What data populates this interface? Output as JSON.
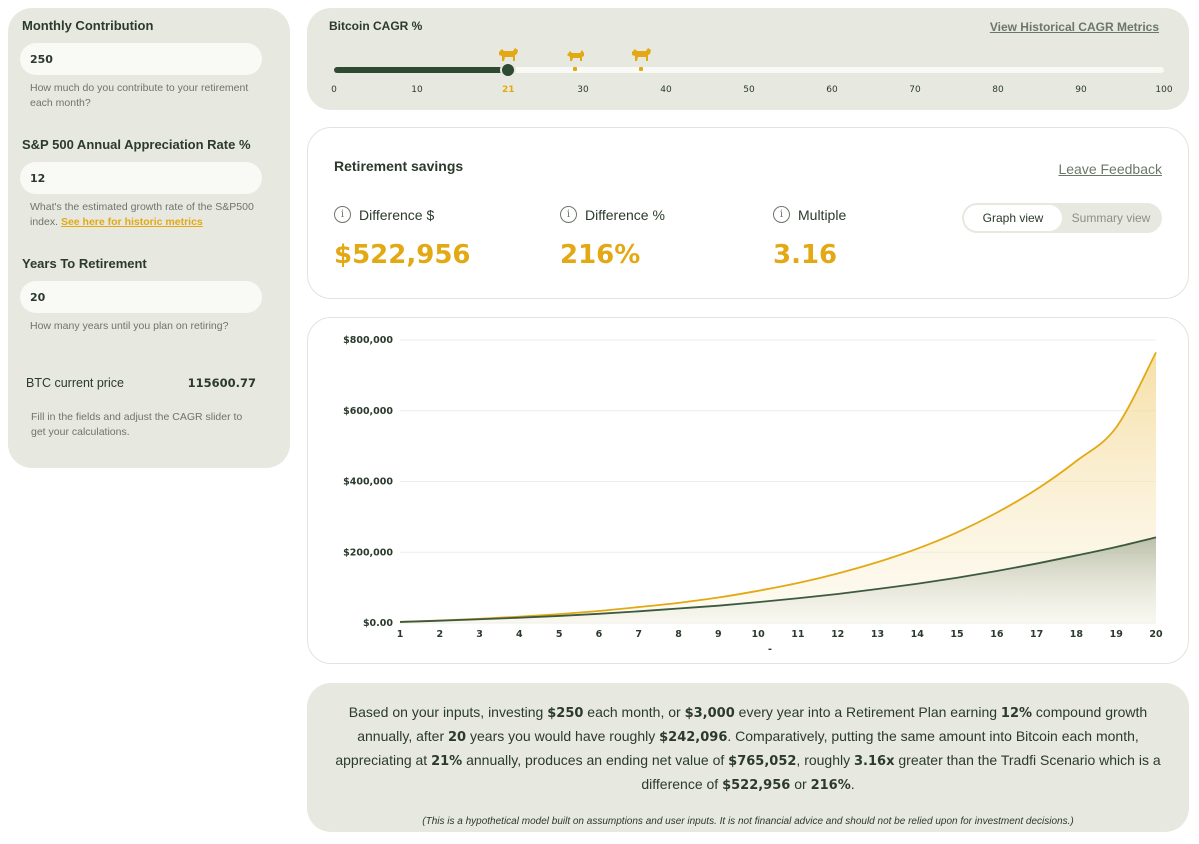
{
  "inputs": {
    "monthly_contribution": {
      "label": "Monthly Contribution",
      "value": "250",
      "help": "How much do you contribute to your retirement each month?"
    },
    "sp500_rate": {
      "label": "S&P 500 Annual Appreciation Rate %",
      "value": "12",
      "help": "What's the estimated growth rate of the S&P500 index.",
      "link": "See here for historic metrics"
    },
    "years": {
      "label": "Years To Retirement",
      "value": "20",
      "help": "How many years until you plan on retiring?"
    },
    "btc_price_label": "BTC current price",
    "btc_price_value": "115600.77",
    "instructions": "Fill in the fields and adjust the CAGR slider to get your calculations."
  },
  "cagr": {
    "title": "Bitcoin CAGR %",
    "link": "View Historical CAGR Metrics",
    "value": 21,
    "min": 0,
    "max": 100,
    "ticks": [
      "0",
      "10",
      "21",
      "30",
      "40",
      "50",
      "60",
      "70",
      "80",
      "90",
      "100"
    ],
    "tick_values": [
      0,
      10,
      21,
      30,
      40,
      50,
      60,
      70,
      80,
      90,
      100
    ],
    "markers": [
      {
        "name": "bull-icon",
        "at": 21
      },
      {
        "name": "cat-icon",
        "at": 29
      },
      {
        "name": "bull-icon",
        "at": 37
      }
    ],
    "accent": "#e3a914",
    "fill_color": "#2f4a32"
  },
  "savings": {
    "title": "Retirement savings",
    "feedback": "Leave Feedback",
    "metrics": [
      {
        "label": "Difference $",
        "value": "$522,956"
      },
      {
        "label": "Difference %",
        "value": "216%"
      },
      {
        "label": "Multiple",
        "value": "3.16"
      }
    ],
    "views": [
      "Graph view",
      "Summary view"
    ],
    "active_view": "Graph view"
  },
  "chart_data": {
    "type": "area",
    "x": [
      1,
      2,
      3,
      4,
      5,
      6,
      7,
      8,
      9,
      10,
      11,
      12,
      13,
      14,
      15,
      16,
      17,
      18,
      19,
      20
    ],
    "series": [
      {
        "color": "#e3a914",
        "values": [
          3000,
          7000,
          12000,
          18000,
          25000,
          34000,
          45000,
          57000,
          72000,
          91000,
          113000,
          140000,
          172000,
          210000,
          256000,
          312000,
          378000,
          458000,
          553000,
          765052
        ]
      },
      {
        "color": "#3d5a3e",
        "values": [
          3000,
          6500,
          10500,
          15000,
          20000,
          26000,
          33000,
          41000,
          49000,
          59000,
          70000,
          82000,
          96000,
          111000,
          128000,
          147000,
          168000,
          191000,
          215000,
          242096
        ]
      }
    ],
    "yticks": [
      "$0.00",
      "$200,000",
      "$400,000",
      "$600,000",
      "$800,000"
    ],
    "ytick_values": [
      0,
      200000,
      400000,
      600000,
      800000
    ],
    "ylim": [
      0,
      800000
    ],
    "x_tick_labels": [
      "1",
      "2",
      "3",
      "4",
      "5",
      "6",
      "7",
      "8",
      "9",
      "10",
      "11",
      "12",
      "13",
      "14",
      "15",
      "16",
      "17",
      "18",
      "19",
      "20"
    ],
    "xlabel": "-",
    "grid": true
  },
  "summary": {
    "p1": "Based on your inputs, investing ",
    "v1": "$250",
    "p2": " each month, or ",
    "v2": "$3,000",
    "p3": " every year into a Retirement Plan earning ",
    "v3": "12%",
    "p4": " compound growth annually, after ",
    "v4": "20",
    "p5": " years you would have roughly ",
    "v5": "$242,096",
    "p6": ". Comparatively, putting the same amount into Bitcoin each month, appreciating at ",
    "v6": "21%",
    "p7": " annually, produces an ending net value of ",
    "v7": "$765,052",
    "p8": ", roughly ",
    "v8": "3.16x",
    "p9": " greater than the Tradfi Scenario which is a difference of ",
    "v9": "$522,956",
    "p10": " or ",
    "v10": "216%",
    "p11": ".",
    "disclaimer": "(This is a hypothetical model built on assumptions and user inputs. It is not financial advice and should not be relied upon for investment decisions.)"
  }
}
